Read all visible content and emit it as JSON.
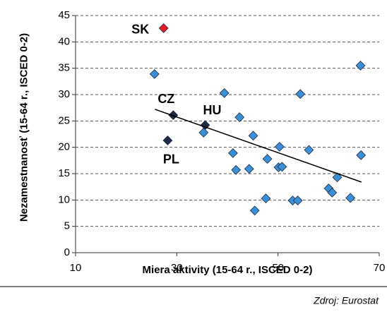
{
  "chart_data": {
    "type": "scatter",
    "xlabel": "Miera aktivity (15-64 r., ISCED 0-2)",
    "ylabel": "Nezamestnanosť (15-64 r., ISCED 0-2)",
    "source": "Zdroj: Eurostat",
    "xlim": [
      10,
      70
    ],
    "xticks": [
      10,
      30,
      50,
      70
    ],
    "ylim": [
      0,
      45
    ],
    "yticks": [
      0,
      5,
      10,
      15,
      20,
      25,
      30,
      35,
      40,
      45
    ],
    "grid": true,
    "series": [
      {
        "x": [
          27.4,
          29.3,
          28.2,
          35.6,
          25.6,
          35.3,
          39.4,
          42.4,
          45.1,
          41.1,
          41.7,
          44.3,
          47.9,
          50.3,
          50.1,
          50.8,
          54.4,
          56.1,
          45.4,
          47.6,
          52.9,
          53.9,
          60.0,
          60.7,
          61.7,
          64.3,
          66.3,
          66.4
        ],
        "values": [
          42.6,
          26.1,
          21.3,
          24.2,
          33.9,
          22.8,
          30.3,
          25.7,
          22.2,
          18.9,
          15.7,
          15.9,
          17.8,
          20.1,
          16.2,
          16.3,
          30.1,
          19.5,
          8.0,
          10.3,
          9.9,
          9.9,
          12.2,
          11.4,
          14.3,
          10.4,
          35.5,
          18.5
        ],
        "point_labels": [
          "SK",
          "CZ",
          "PL",
          "HU",
          null,
          null,
          null,
          null,
          null,
          null,
          null,
          null,
          null,
          null,
          null,
          null,
          null,
          null,
          null,
          null,
          null,
          null,
          null,
          null,
          null,
          null,
          null,
          null
        ],
        "colors": [
          "#e02020",
          "#1f2a44",
          "#1f2a44",
          "#1f2a44",
          "#3a8fd6",
          "#3a8fd6",
          "#3a8fd6",
          "#3a8fd6",
          "#3a8fd6",
          "#3a8fd6",
          "#3a8fd6",
          "#3a8fd6",
          "#3a8fd6",
          "#3a8fd6",
          "#3a8fd6",
          "#3a8fd6",
          "#3a8fd6",
          "#3a8fd6",
          "#3a8fd6",
          "#3a8fd6",
          "#3a8fd6",
          "#3a8fd6",
          "#3a8fd6",
          "#3a8fd6",
          "#3a8fd6",
          "#3a8fd6",
          "#3a8fd6",
          "#3a8fd6"
        ]
      }
    ],
    "trendline": {
      "x": [
        25.7,
        66.5
      ],
      "values": [
        27.2,
        13.4
      ],
      "color": "#000000"
    }
  }
}
